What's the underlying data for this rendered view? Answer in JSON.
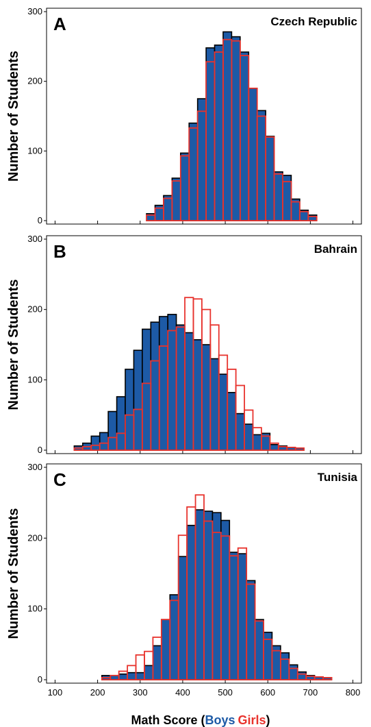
{
  "colors": {
    "boys": "#1d5aa6",
    "girls": "#e8332d",
    "outline": "#000000",
    "background": "#ffffff"
  },
  "x_axis": {
    "label_prefix": "Math Score (",
    "boys_label": "Boys",
    "girls_label": "Girls",
    "label_suffix": ")",
    "ticks": [
      "100",
      "200",
      "300",
      "400",
      "500",
      "600",
      "700",
      "800"
    ],
    "range": [
      80,
      820
    ]
  },
  "chart_data": [
    {
      "type": "bar",
      "panel_label": "A",
      "title": "Czech Republic",
      "ylabel": "Number of Students",
      "ylim": [
        0,
        300
      ],
      "yticks": [
        "0",
        "100",
        "200",
        "300"
      ],
      "bin_width": 20,
      "bin_start": 315,
      "series": [
        {
          "name": "Boys",
          "values": [
            10,
            22,
            36,
            61,
            97,
            140,
            175,
            248,
            252,
            271,
            264,
            242,
            190,
            158,
            121,
            70,
            65,
            31,
            15,
            8
          ]
        },
        {
          "name": "Girls",
          "values": [
            8,
            18,
            32,
            57,
            93,
            133,
            157,
            228,
            242,
            260,
            258,
            237,
            190,
            150,
            120,
            67,
            56,
            27,
            13,
            6
          ]
        }
      ]
    },
    {
      "type": "bar",
      "panel_label": "B",
      "title": "Bahrain",
      "ylabel": "Number of Students",
      "ylim": [
        0,
        300
      ],
      "yticks": [
        "0",
        "100",
        "200",
        "300"
      ],
      "bin_width": 20,
      "bin_start": 145,
      "series": [
        {
          "name": "Boys",
          "values": [
            6,
            10,
            20,
            25,
            55,
            76,
            115,
            142,
            172,
            182,
            190,
            193,
            178,
            167,
            157,
            150,
            130,
            108,
            82,
            52,
            37,
            22,
            24,
            8,
            6,
            4,
            3
          ]
        },
        {
          "name": "Girls",
          "values": [
            3,
            5,
            7,
            10,
            18,
            24,
            50,
            58,
            95,
            127,
            148,
            170,
            175,
            217,
            215,
            200,
            178,
            135,
            115,
            92,
            57,
            32,
            20,
            10,
            5,
            4,
            3
          ]
        }
      ]
    },
    {
      "type": "bar",
      "panel_label": "C",
      "title": "Tunisia",
      "ylabel": "Number of Students",
      "ylim": [
        0,
        300
      ],
      "yticks": [
        "0",
        "100",
        "200",
        "300"
      ],
      "bin_width": 20,
      "bin_start": 210,
      "series": [
        {
          "name": "Boys",
          "values": [
            6,
            6,
            8,
            10,
            10,
            20,
            48,
            85,
            120,
            174,
            218,
            240,
            238,
            236,
            225,
            180,
            178,
            140,
            85,
            67,
            48,
            38,
            21,
            11,
            6,
            4,
            3
          ]
        },
        {
          "name": "Girls",
          "values": [
            3,
            6,
            12,
            20,
            35,
            40,
            60,
            85,
            112,
            204,
            244,
            261,
            224,
            208,
            203,
            175,
            186,
            135,
            83,
            57,
            41,
            29,
            16,
            8,
            5,
            4,
            3
          ]
        }
      ]
    }
  ]
}
